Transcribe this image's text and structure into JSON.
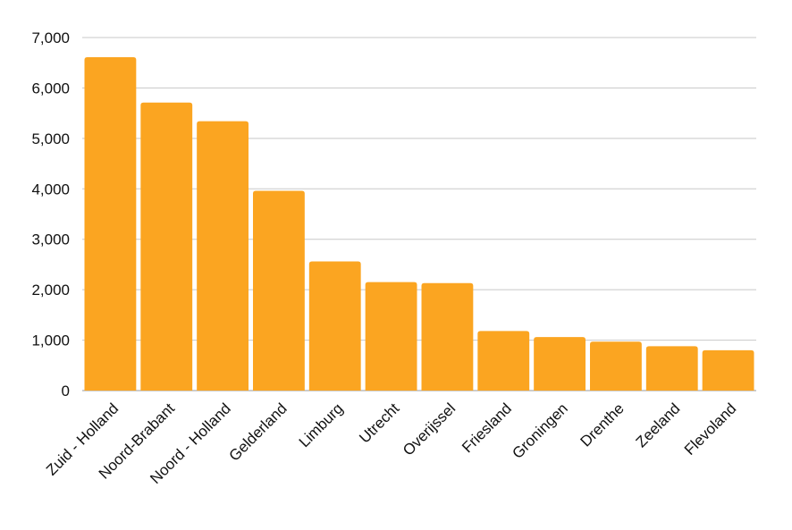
{
  "chart_data": {
    "type": "bar",
    "title": "",
    "xlabel": "",
    "ylabel": "",
    "categories": [
      "Zuid - Holland",
      "Noord-Brabant",
      "Noord - Holland",
      "Gelderland",
      "Limburg",
      "Utrecht",
      "Overijssel",
      "Friesland",
      "Groningen",
      "Drenthe",
      "Zeeland",
      "Flevoland"
    ],
    "values": [
      6610,
      5710,
      5340,
      3960,
      2560,
      2150,
      2130,
      1180,
      1060,
      970,
      880,
      800
    ],
    "ylim": [
      0,
      7000
    ],
    "yticks": [
      0,
      1000,
      2000,
      3000,
      4000,
      5000,
      6000,
      7000
    ],
    "ytick_labels": [
      "0",
      "1,000",
      "2,000",
      "3,000",
      "4,000",
      "5,000",
      "6,000",
      "7,000"
    ],
    "grid": true,
    "bar_color": "#FBA521",
    "grid_color": "#C8C8C8",
    "text_color": "#111111"
  }
}
